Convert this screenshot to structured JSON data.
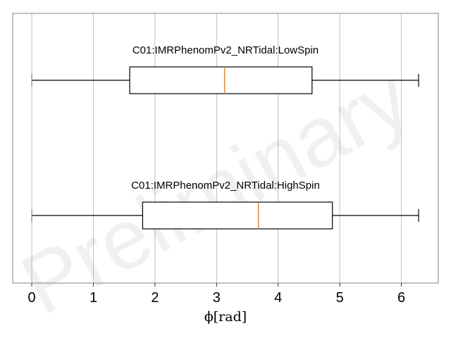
{
  "chart_data": {
    "type": "boxplot",
    "orientation": "horizontal",
    "xlabel": "ϕ[rad]",
    "xlim": [
      -0.31,
      6.6
    ],
    "x_ticks": [
      0,
      1,
      2,
      3,
      4,
      5,
      6
    ],
    "grid": "vertical",
    "watermark": "Preliminary",
    "series": [
      {
        "name": "C01:IMRPhenomPv2_NRTidal:LowSpin",
        "whisker_low": 0.0,
        "q1": 1.59,
        "median": 3.13,
        "q3": 4.55,
        "whisker_high": 6.28
      },
      {
        "name": "C01:IMRPhenomPv2_NRTidal:HighSpin",
        "whisker_low": 0.0,
        "q1": 1.8,
        "median": 3.68,
        "q3": 4.88,
        "whisker_high": 6.28
      }
    ],
    "colors": {
      "box": "#000000",
      "median": "#ff7f0e",
      "grid": "#b0b0b0",
      "frame": "#808080"
    }
  }
}
